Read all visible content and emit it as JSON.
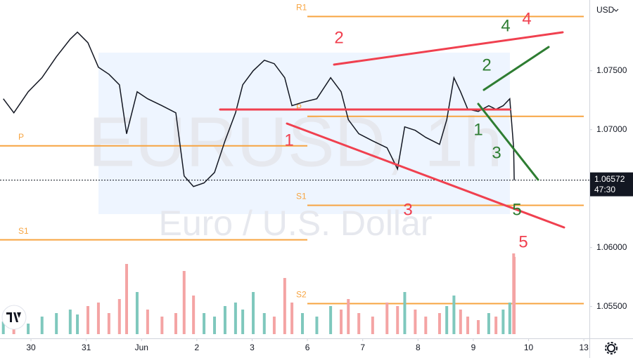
{
  "chart_data": {
    "type": "line",
    "title": "EURUSD, 1h",
    "subtitle": "Euro / U.S. Dollar",
    "currency": "USD",
    "last_price": 1.06572,
    "countdown": "47:30",
    "color": "#131722",
    "up_color": "#7fc8bd",
    "down_color": "#f4a4a4",
    "xlim": [
      -0.56,
      10.1
    ],
    "ylim": [
      1.0523,
      1.081
    ],
    "xticks": [
      {
        "value": 0,
        "label": "30"
      },
      {
        "value": 1,
        "label": "31"
      },
      {
        "value": 2,
        "label": "Jun"
      },
      {
        "value": 3,
        "label": "2"
      },
      {
        "value": 4,
        "label": "3"
      },
      {
        "value": 5,
        "label": "6"
      },
      {
        "value": 6,
        "label": "7"
      },
      {
        "value": 7,
        "label": "8"
      },
      {
        "value": 8,
        "label": "9"
      },
      {
        "value": 9,
        "label": "10"
      },
      {
        "value": 10,
        "label": "13"
      }
    ],
    "yticks": [
      {
        "value": 1.075,
        "label": "1.07500"
      },
      {
        "value": 1.07,
        "label": "1.07000"
      },
      {
        "value": 1.06,
        "label": "1.06000"
      },
      {
        "value": 1.055,
        "label": "1.05500"
      }
    ],
    "x": [
      -0.5,
      -0.31,
      -0.05,
      0.2,
      0.46,
      0.71,
      0.84,
      1.03,
      1.22,
      1.41,
      1.6,
      1.73,
      1.92,
      2.11,
      2.37,
      2.62,
      2.77,
      2.94,
      3.13,
      3.32,
      3.51,
      3.7,
      3.83,
      4.02,
      4.22,
      4.4,
      4.59,
      4.72,
      4.91,
      5.17,
      5.42,
      5.61,
      5.74,
      5.93,
      6.18,
      6.44,
      6.63,
      6.76,
      6.95,
      7.14,
      7.39,
      7.52,
      7.65,
      7.77,
      7.9,
      8.09,
      8.28,
      8.41,
      8.54,
      8.66,
      8.73,
      8.74
    ],
    "values": [
      1.07262,
      1.07143,
      1.07322,
      1.07441,
      1.07619,
      1.07768,
      1.07827,
      1.07738,
      1.0753,
      1.0747,
      1.07381,
      1.06965,
      1.07322,
      1.07262,
      1.07203,
      1.07143,
      1.06607,
      1.06518,
      1.06548,
      1.06637,
      1.06905,
      1.07143,
      1.07381,
      1.075,
      1.07589,
      1.0756,
      1.07441,
      1.07203,
      1.07232,
      1.07262,
      1.07441,
      1.07322,
      1.07084,
      1.06965,
      1.06905,
      1.06846,
      1.06667,
      1.07024,
      1.06994,
      1.06935,
      1.06875,
      1.07084,
      1.07441,
      1.07322,
      1.07173,
      1.07155,
      1.07203,
      1.07173,
      1.07203,
      1.07262,
      1.06846,
      1.06572
    ],
    "volume": [
      18,
      22,
      15,
      25,
      30,
      35,
      28,
      40,
      45,
      30,
      50,
      100,
      60,
      35,
      25,
      30,
      90,
      55,
      30,
      25,
      40,
      45,
      35,
      60,
      30,
      25,
      80,
      45,
      30,
      25,
      40,
      35,
      50,
      30,
      25,
      45,
      40,
      60,
      35,
      25,
      30,
      40,
      55,
      35,
      25,
      20,
      30,
      25,
      35,
      45,
      115,
      110
    ],
    "levels": [
      {
        "label": "R1",
        "value": 1.0796,
        "side": "right"
      },
      {
        "label": "P",
        "value": 1.06863,
        "side": "left"
      },
      {
        "label": "P",
        "value": 1.07113,
        "side": "right"
      },
      {
        "label": "S1",
        "value": 1.06066,
        "side": "left"
      },
      {
        "label": "S1",
        "value": 1.06358,
        "side": "right"
      },
      {
        "label": "S2",
        "value": 1.05525,
        "side": "right"
      }
    ],
    "level_color": "#f7a440",
    "waves_red": [
      "1",
      "2",
      "3",
      "4",
      "5"
    ],
    "waves_green": [
      "1",
      "2",
      "3",
      "4",
      "5"
    ],
    "red_color": "#f0404f",
    "green_color": "#2e7d32"
  }
}
